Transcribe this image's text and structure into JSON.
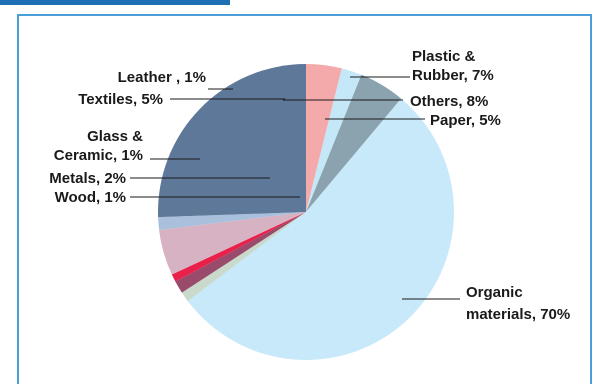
{
  "chart_data": {
    "type": "pie",
    "title": "",
    "slices": [
      {
        "label": "Plastic & Rubber, 7%",
        "lines": [
          "Plastic &",
          "Rubber, 7%"
        ],
        "value": 7,
        "color": "#f4a9aa"
      },
      {
        "label": "Others, 8%",
        "lines": [
          "Others, 8%"
        ],
        "value": 8,
        "color": "#c5e8f8"
      },
      {
        "label": "Paper, 5%",
        "lines": [
          "Paper, 5%"
        ],
        "value": 5,
        "color": "#8aa3ae"
      },
      {
        "label": "Organic materials, 70%",
        "lines": [
          "Organic",
          "materials, 70%"
        ],
        "value": 70,
        "color": "#c8e9f9"
      },
      {
        "label": "Wood, 1%",
        "lines": [
          "Wood, 1%"
        ],
        "value": 1,
        "color": "#c9d9cc"
      },
      {
        "label": "Metals, 2%",
        "lines": [
          "Metals, 2%"
        ],
        "value": 2,
        "color": "#9a4a6b"
      },
      {
        "label": "Glass & Ceramic, 1%",
        "lines": [
          "Glass &",
          "Ceramic, 1%"
        ],
        "value": 1,
        "color": "#e8204a"
      },
      {
        "label": "Textiles, 5%",
        "lines": [
          "Textiles, 5%"
        ],
        "value": 5,
        "color": "#d6b2c2"
      },
      {
        "label": "Leather , 1%",
        "lines": [
          "Leather , 1%"
        ],
        "value": 1,
        "color": "#a9c0dc"
      },
      {
        "label": "Others, 8%",
        "lines": [],
        "value": 8,
        "color": "#5e7899"
      }
    ]
  },
  "colors": {
    "frame_border": "#4a9fd8",
    "top_bar": "#1e6fb4",
    "label_text": "#1a1a1a",
    "leader_line": "#1a1a1a"
  }
}
